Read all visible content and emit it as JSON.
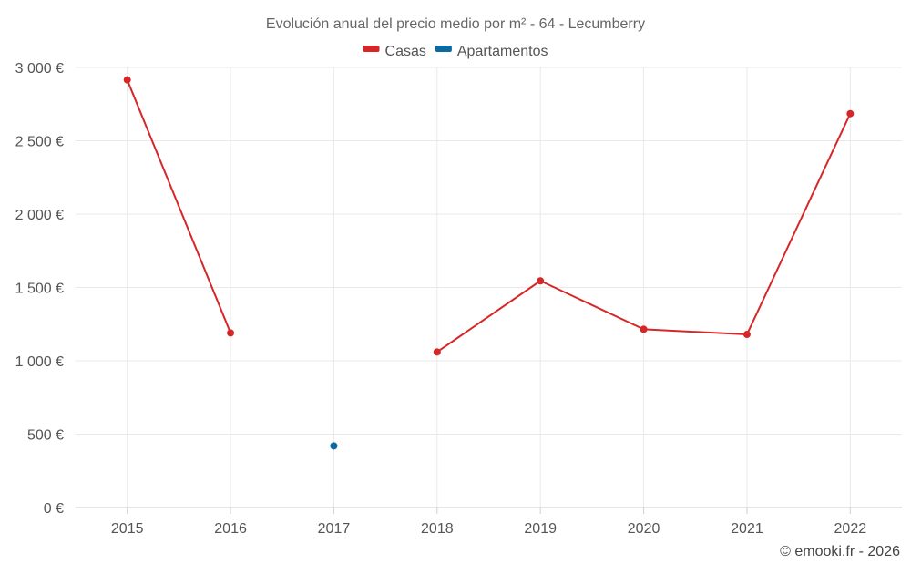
{
  "chart_data": {
    "type": "line",
    "title": "Evolución anual del precio medio por m² - 64 - Lecumberry",
    "xlabel": "",
    "ylabel": "",
    "categories": [
      "2015",
      "2016",
      "2017",
      "2018",
      "2019",
      "2020",
      "2021",
      "2022"
    ],
    "ylim": [
      0,
      3000
    ],
    "yticks": [
      0,
      500,
      1000,
      1500,
      2000,
      2500,
      3000
    ],
    "ytick_labels": [
      "0 €",
      "500 €",
      "1 000 €",
      "1 500 €",
      "2 000 €",
      "2 500 €",
      "3 000 €"
    ],
    "grid": true,
    "legend_position": "top-center",
    "series": [
      {
        "name": "Casas",
        "color": "#d62728",
        "values": [
          2915,
          1190,
          null,
          1060,
          1545,
          1215,
          1180,
          2685
        ]
      },
      {
        "name": "Apartamentos",
        "color": "#0b6aa2",
        "values": [
          null,
          null,
          420,
          null,
          null,
          null,
          null,
          null
        ]
      }
    ]
  },
  "credit": "© emooki.fr - 2026"
}
